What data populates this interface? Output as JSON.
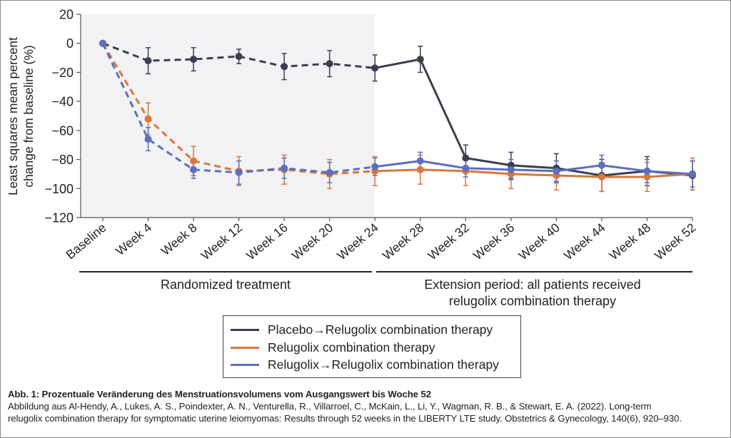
{
  "figure": {
    "caption_title": "Abb. 1: Prozentuale Veränderung des Menstruationsvolumens vom Ausgangswert bis Woche 52",
    "caption_text_line1": "Abbildung aus Al-Hendy, A., Lukes, A. S., Poindexter, A. N., Venturella, R., Villarroel, C., McKain, L., Li, Y., Wagman, R. B., & Stewart, E. A. (2022). Long-term",
    "caption_text_line2": "relugolix combination therapy for symptomatic uterine leiomyomas: Results through 52 weeks in the LIBERTY LTE study. Obstetrics & Gynecology, 140(6), 920–930."
  },
  "chart_data": {
    "type": "line",
    "title": "",
    "xlabel": "",
    "ylabel_line1": "Least squares mean percent",
    "ylabel_line2": "change from baseline (%)",
    "ylim": [
      -120,
      20
    ],
    "yticks": [
      20,
      0,
      -20,
      -40,
      -60,
      -80,
      -100,
      -120
    ],
    "ytick_labels": [
      "20",
      "0",
      "−20",
      "−40",
      "−60",
      "−80",
      "−100",
      "−120"
    ],
    "categories": [
      "Baseline",
      "Week 4",
      "Week 8",
      "Week 12",
      "Week 16",
      "Week 20",
      "Week 24",
      "Week 28",
      "Week 32",
      "Week 36",
      "Week 40",
      "Week 44",
      "Week 48",
      "Week 52"
    ],
    "grid": false,
    "shaded_region": {
      "from": "Baseline",
      "to": "Week 24",
      "color": "#f2f2f4"
    },
    "periods": [
      {
        "label": "Randomized treatment",
        "from": "Baseline",
        "to": "Week 24"
      },
      {
        "label_line1": "Extension period: all patients received",
        "label_line2": "relugolix combination therapy",
        "from": "Week 24",
        "to": "Week 52"
      }
    ],
    "dashed_until": "Week 24",
    "legend_position": "bottom-center",
    "series": [
      {
        "name": "Placebo→Relugolix combination therapy",
        "color": "#3a3f50",
        "values": [
          0,
          -12,
          -11,
          -9,
          -16,
          -14,
          -17,
          -11,
          -79,
          -84,
          -86,
          -91,
          -88,
          -91
        ],
        "error": [
          0,
          9,
          8,
          5,
          9,
          9,
          9,
          9,
          9,
          9,
          10,
          11,
          10,
          10
        ]
      },
      {
        "name": "Relugolix combination therapy",
        "color": "#d9773a",
        "values": [
          0,
          -52,
          -81,
          -88,
          -87,
          -90,
          -88,
          -87,
          -88,
          -90,
          -91,
          -92,
          -92,
          -90
        ],
        "error": [
          0,
          11,
          10,
          10,
          10,
          10,
          10,
          10,
          10,
          10,
          10,
          10,
          10,
          11
        ]
      },
      {
        "name": "Relugolix→Relugolix combination therapy",
        "color": "#5b6ec0",
        "values": [
          0,
          -66,
          -87,
          -89,
          -86,
          -89,
          -85,
          -81,
          -86,
          -87,
          -88,
          -84,
          -88,
          -90
        ],
        "error": [
          0,
          8,
          6,
          8,
          7,
          7,
          6,
          6,
          6,
          7,
          7,
          7,
          8,
          9
        ]
      }
    ]
  }
}
